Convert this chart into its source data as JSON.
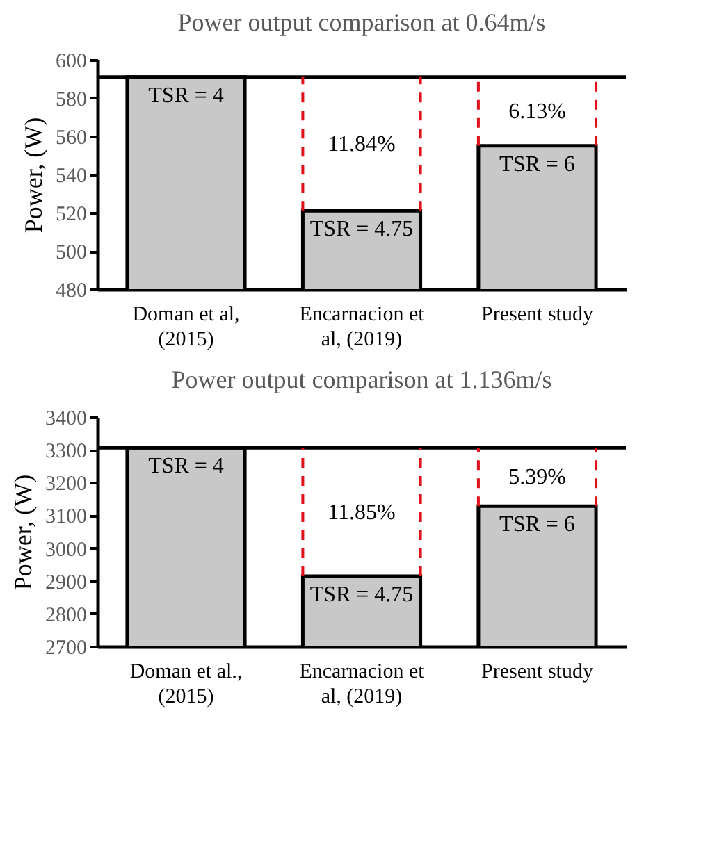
{
  "chart_data": [
    {
      "type": "bar",
      "title": "Power output comparison at 0.64m/s",
      "ylabel": "Power, (W)",
      "categories": [
        "Doman et al, (2015)",
        "Encarnacion et al, (2019)",
        "Present study"
      ],
      "values": [
        591,
        521,
        555
      ],
      "color": "#c8c8c8",
      "ylim": [
        480,
        600
      ],
      "yticks": [
        480,
        500,
        520,
        540,
        560,
        580,
        600
      ],
      "ref_lines": [
        {
          "axis": "y",
          "value": 591,
          "color": "#000000"
        }
      ],
      "annotations": [
        {
          "text": "TSR = 4",
          "x": "Doman et al, (2015)",
          "y": 591
        },
        {
          "text": "TSR = 4.75",
          "x": "Encarnacion et al, (2019)",
          "y": 521
        },
        {
          "text": "TSR = 6",
          "x": "Present study",
          "y": 555
        },
        {
          "text": "11.84%",
          "x": "Encarnacion et al, (2019)",
          "y": 591
        },
        {
          "text": "6.13%",
          "x": "Present study",
          "y": 591
        }
      ]
    },
    {
      "type": "bar",
      "title": "Power output comparison at 1.136m/s",
      "ylabel": "Power, (W)",
      "categories": [
        "Doman et al., (2015)",
        "Encarnacion et al, (2019)",
        "Present study"
      ],
      "values": [
        3306,
        2914,
        3128
      ],
      "color": "#c8c8c8",
      "ylim": [
        2700,
        3400
      ],
      "yticks": [
        2700,
        2800,
        2900,
        3000,
        3100,
        3200,
        3300,
        3400
      ],
      "ref_lines": [
        {
          "axis": "y",
          "value": 3306,
          "color": "#000000"
        }
      ],
      "annotations": [
        {
          "text": "TSR = 4",
          "x": "Doman et al., (2015)",
          "y": 3306
        },
        {
          "text": "TSR = 4.75",
          "x": "Encarnacion et al, (2019)",
          "y": 2914
        },
        {
          "text": "TSR = 6",
          "x": "Present study",
          "y": 3128
        },
        {
          "text": "11.85%",
          "x": "Encarnacion et al, (2019)",
          "y": 3306
        },
        {
          "text": "5.39%",
          "x": "Present study",
          "y": 3306
        }
      ]
    }
  ]
}
